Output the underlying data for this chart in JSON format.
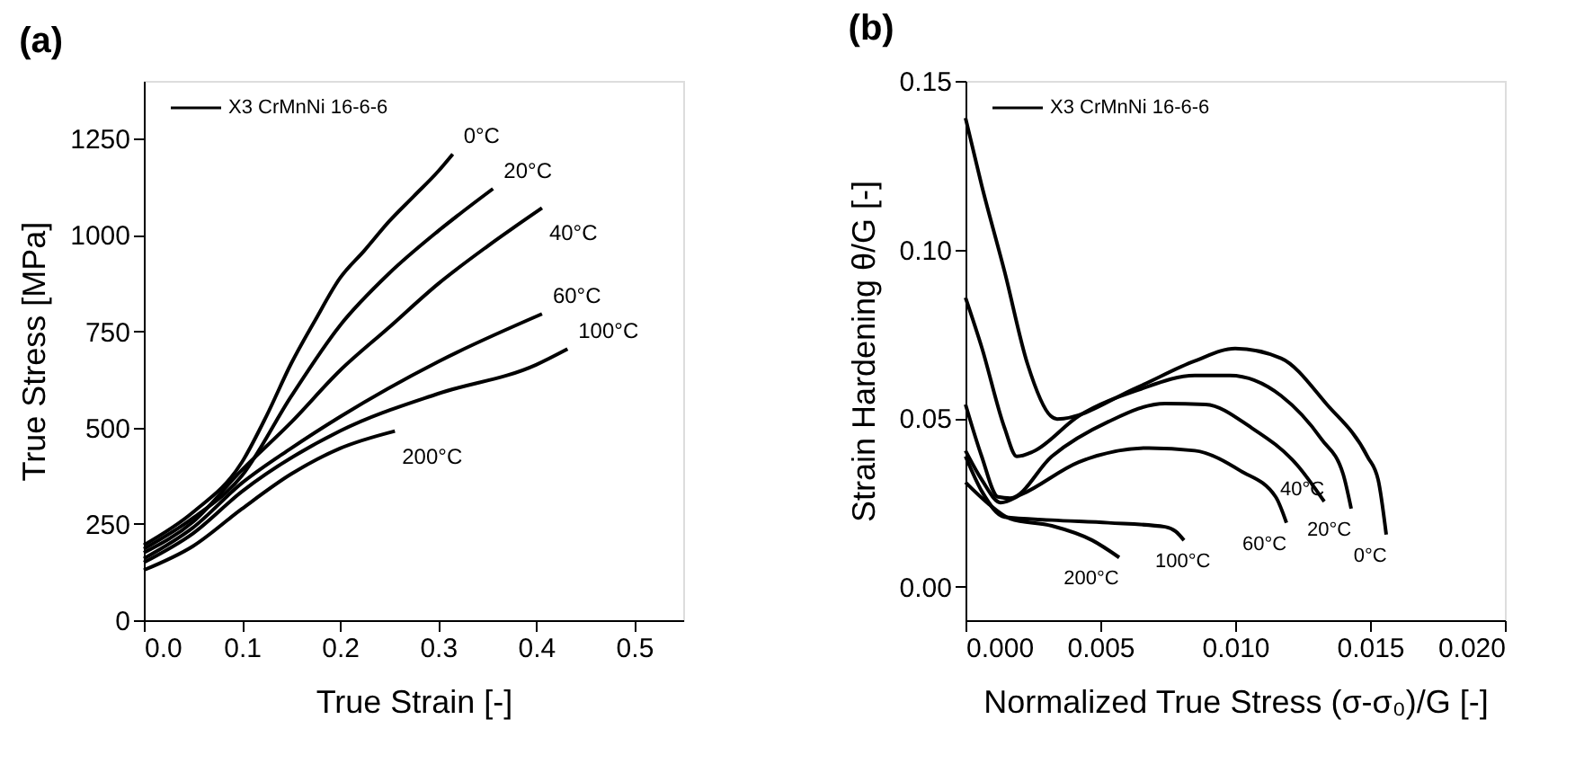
{
  "chart_data": [
    {
      "type": "line",
      "title": "(a)",
      "xlabel": "True Strain [-]",
      "ylabel": "True Stress [MPa]",
      "legend_title": "X3 CrMnNi 16-6-6",
      "grid": false,
      "marker": "none",
      "line_style": "solid",
      "xlim": [
        0,
        0.55
      ],
      "ylim": [
        0,
        1400
      ],
      "xticks": [
        {
          "value": 0,
          "label": "0.0"
        },
        0.1,
        0.2,
        0.3,
        0.4,
        0.5
      ],
      "yticks": [
        0,
        250,
        500,
        750,
        1000,
        1250
      ],
      "series": [
        {
          "name": "0°C",
          "color": "#000000",
          "x": [
            0,
            0.05,
            0.1,
            0.125,
            0.15,
            0.175,
            0.2,
            0.225,
            0.25,
            0.275,
            0.3,
            0.315
          ],
          "values": [
            195,
            280,
            410,
            530,
            665,
            780,
            888,
            960,
            1035,
            1100,
            1165,
            1210
          ]
        },
        {
          "name": "20°C",
          "color": "#000000",
          "x": [
            0,
            0.05,
            0.1,
            0.15,
            0.2,
            0.25,
            0.3,
            0.356
          ],
          "values": [
            185,
            265,
            375,
            580,
            765,
            900,
            1010,
            1120
          ]
        },
        {
          "name": "40°C",
          "color": "#000000",
          "x": [
            0,
            0.05,
            0.1,
            0.15,
            0.2,
            0.25,
            0.3,
            0.35,
            0.406
          ],
          "values": [
            175,
            255,
            390,
            513,
            648,
            760,
            873,
            970,
            1070
          ]
        },
        {
          "name": "60°C",
          "color": "#000000",
          "x": [
            0,
            0.05,
            0.1,
            0.15,
            0.2,
            0.3,
            0.406
          ],
          "values": [
            160,
            240,
            356,
            446,
            528,
            671,
            795
          ]
        },
        {
          "name": "100°C",
          "color": "#000000",
          "x": [
            0,
            0.05,
            0.1,
            0.2,
            0.3,
            0.4,
            0.432
          ],
          "values": [
            150,
            225,
            334,
            491,
            588,
            663,
            704
          ]
        },
        {
          "name": "200°C",
          "color": "#000000",
          "x": [
            0,
            0.05,
            0.1,
            0.15,
            0.2,
            0.256
          ],
          "values": [
            130,
            192,
            289,
            379,
            446,
            491
          ]
        }
      ]
    },
    {
      "type": "line",
      "title": "(b)",
      "xlabel": "Normalized True Stress (σ-σ₀)/G [-]",
      "ylabel": "Strain Hardening θ/G [-]",
      "legend_title": "X3 CrMnNi 16-6-6",
      "grid": false,
      "marker": "none",
      "line_style": "solid",
      "xlim": [
        0,
        0.02
      ],
      "ylim": [
        -0.01,
        0.15
      ],
      "xticks": [
        {
          "value": 0,
          "label": "0.000"
        },
        0.005,
        {
          "value": 0.01,
          "label": "0.010"
        },
        0.015,
        {
          "value": 0.02,
          "label": "0.020"
        }
      ],
      "yticks": [
        {
          "value": 0,
          "label": "0.00"
        },
        0.05,
        {
          "value": 0.1,
          "label": "0.10"
        },
        0.15
      ],
      "series": [
        {
          "name": "0°C",
          "color": "#000000",
          "x": [
            0,
            0.0006,
            0.00145,
            0.0023,
            0.00316,
            0.0034,
            0.00635,
            0.0085,
            0.01,
            0.0117,
            0.0134,
            0.0149,
            0.0153,
            0.0156
          ],
          "values": [
            0.139,
            0.119,
            0.0934,
            0.066,
            0.0506,
            0.0497,
            0.059,
            0.0669,
            0.0706,
            0.0677,
            0.054,
            0.0386,
            0.0317,
            0.0154
          ]
        },
        {
          "name": "20°C",
          "color": "#000000",
          "x": [
            0,
            0.0006,
            0.00145,
            0.0019,
            0.0025,
            0.0042,
            0.0064,
            0.0085,
            0.0098,
            0.0117,
            0.0132,
            0.014,
            0.0143
          ],
          "values": [
            0.0857,
            0.071,
            0.047,
            0.0386,
            0.04,
            0.0506,
            0.0583,
            0.0626,
            0.0626,
            0.0566,
            0.0437,
            0.0334,
            0.0231
          ]
        },
        {
          "name": "40°C",
          "color": "#000000",
          "x": [
            0,
            0.0006,
            0.0012,
            0.00166,
            0.0032,
            0.0053,
            0.0074,
            0.0089,
            0.0106,
            0.0123,
            0.0133
          ],
          "values": [
            0.054,
            0.0386,
            0.0266,
            0.0262,
            0.0386,
            0.0489,
            0.0543,
            0.054,
            0.0471,
            0.036,
            0.0252
          ]
        },
        {
          "name": "60°C",
          "color": "#000000",
          "x": [
            0,
            0.0006,
            0.0013,
            0.0021,
            0.0042,
            0.0068,
            0.0085,
            0.0102,
            0.0115,
            0.0119
          ],
          "values": [
            0.0403,
            0.0317,
            0.0249,
            0.0274,
            0.0369,
            0.0411,
            0.0403,
            0.0343,
            0.0266,
            0.0189
          ]
        },
        {
          "name": "100°C",
          "color": "#000000",
          "x": [
            0,
            0.0006,
            0.00145,
            0.0032,
            0.0053,
            0.0074,
            0.0078,
            0.0081
          ],
          "values": [
            0.0386,
            0.0283,
            0.0206,
            0.0197,
            0.0189,
            0.0177,
            0.0163,
            0.0137
          ]
        },
        {
          "name": "200°C",
          "color": "#000000",
          "x": [
            0,
            0.0008,
            0.00166,
            0.0032,
            0.0047,
            0.0057
          ],
          "values": [
            0.0309,
            0.0249,
            0.0201,
            0.018,
            0.0137,
            0.0086
          ]
        }
      ]
    }
  ]
}
